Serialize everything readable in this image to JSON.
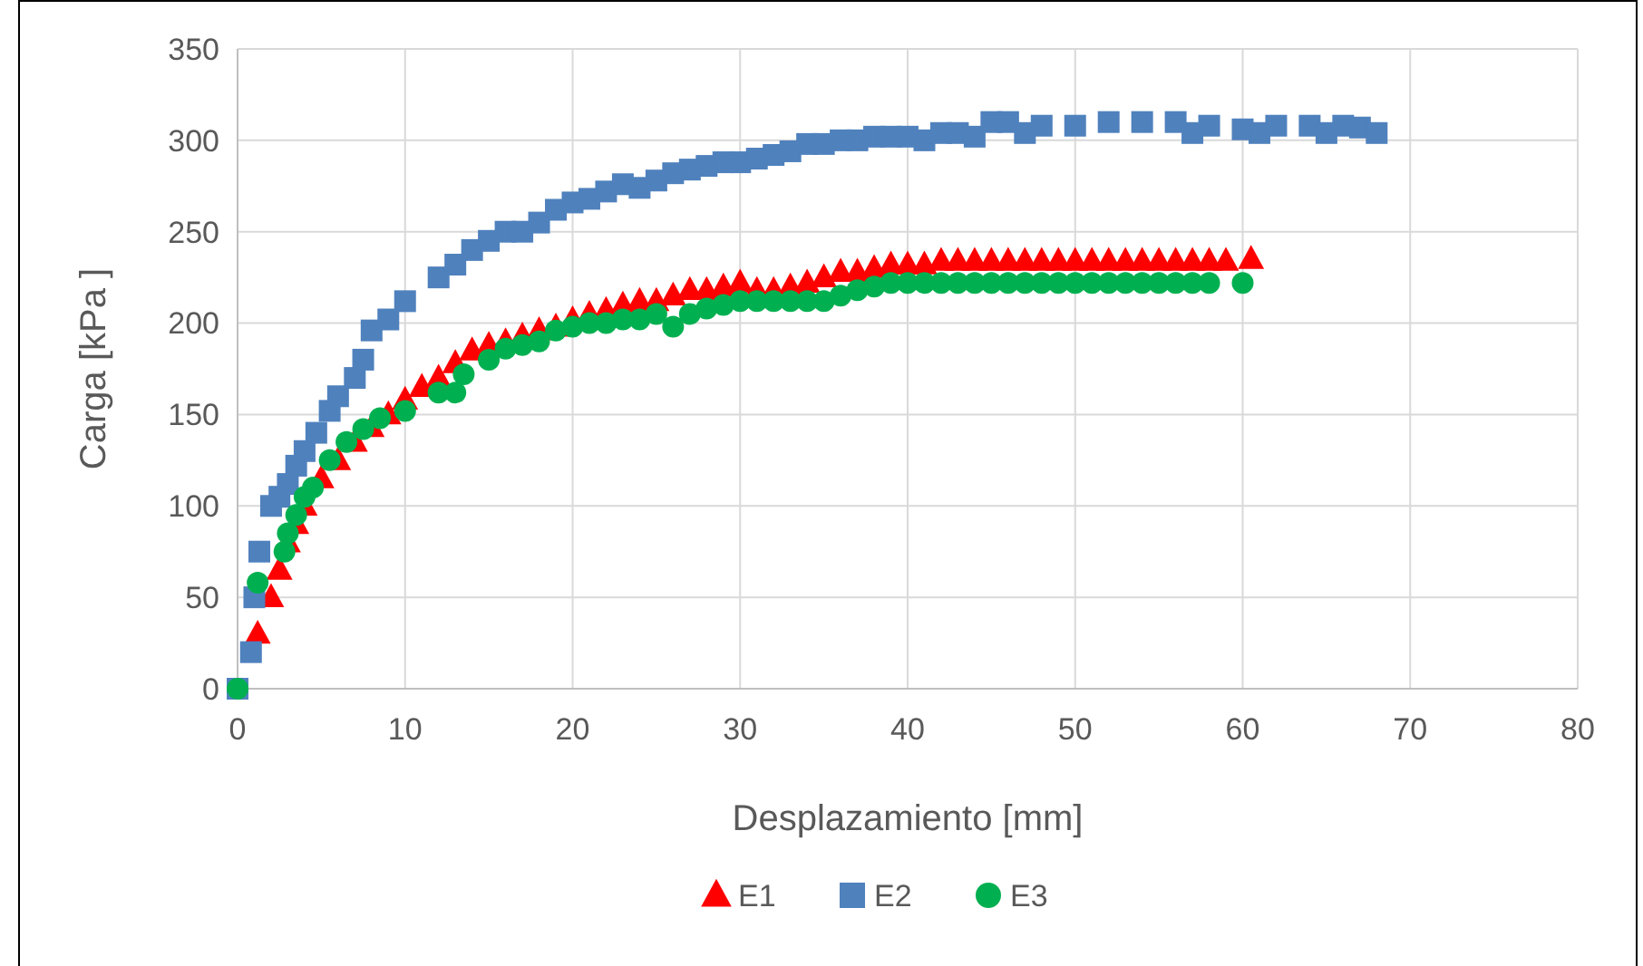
{
  "chart_data": {
    "type": "scatter",
    "xlabel": "Desplazamiento [mm]",
    "ylabel": "Carga [kPa ]",
    "xlim": [
      0,
      80
    ],
    "xticks": [
      0,
      10,
      20,
      30,
      40,
      50,
      60,
      70,
      80
    ],
    "ylim": [
      0,
      350
    ],
    "yticks": [
      0,
      50,
      100,
      150,
      200,
      250,
      300,
      350
    ],
    "grid": true,
    "legend": "bottom",
    "series": [
      {
        "name": "E1",
        "color": "#ff0000",
        "marker": "triangle",
        "x": [
          1.2,
          2,
          2.5,
          3,
          3.5,
          4,
          5,
          6,
          7,
          8,
          9,
          10,
          11,
          12,
          13,
          14,
          15,
          16,
          17,
          18,
          19,
          20,
          21,
          22,
          23,
          24,
          25,
          26,
          27,
          28,
          29,
          30,
          31,
          32,
          33,
          34,
          35,
          36,
          37,
          38,
          39,
          40,
          41,
          42,
          43,
          44,
          45,
          46,
          47,
          48,
          49,
          50,
          51,
          52,
          53,
          54,
          55,
          56,
          57,
          58,
          59,
          60.5
        ],
        "values": [
          30,
          50,
          65,
          80,
          90,
          100,
          115,
          125,
          135,
          143,
          150,
          158,
          165,
          170,
          178,
          185,
          188,
          190,
          193,
          196,
          198,
          202,
          205,
          207,
          210,
          212,
          212,
          215,
          218,
          218,
          220,
          222,
          218,
          218,
          220,
          222,
          225,
          228,
          228,
          230,
          232,
          232,
          232,
          234,
          234,
          234,
          234,
          234,
          234,
          234,
          234,
          234,
          234,
          234,
          234,
          234,
          234,
          234,
          234,
          234,
          234,
          235
        ]
      },
      {
        "name": "E2",
        "color": "#4f81bd",
        "marker": "square",
        "x": [
          0,
          0.8,
          1,
          1.3,
          2,
          2.5,
          3,
          3.5,
          4,
          4.7,
          5.5,
          6,
          7,
          7.5,
          8,
          9,
          10,
          12,
          13,
          14,
          15,
          16,
          17,
          18,
          19,
          20,
          21,
          22,
          23,
          24,
          25,
          26,
          27,
          28,
          29,
          30,
          31,
          32,
          33,
          34,
          35,
          36,
          37,
          38,
          39,
          40,
          41,
          42,
          43,
          44,
          45,
          46,
          47,
          48,
          50,
          52,
          54,
          56,
          57,
          58,
          60,
          61,
          62,
          64,
          65,
          66,
          67,
          68
        ],
        "values": [
          0,
          20,
          50,
          75,
          100,
          105,
          112,
          122,
          130,
          140,
          152,
          160,
          170,
          180,
          196,
          202,
          212,
          225,
          232,
          240,
          245,
          250,
          250,
          255,
          262,
          266,
          268,
          272,
          276,
          274,
          278,
          282,
          284,
          286,
          288,
          288,
          290,
          292,
          294,
          298,
          298,
          300,
          300,
          302,
          302,
          302,
          300,
          304,
          304,
          302,
          310,
          310,
          304,
          308,
          308,
          310,
          310,
          310,
          304,
          308,
          306,
          304,
          308,
          308,
          304,
          308,
          307,
          304
        ]
      },
      {
        "name": "E3",
        "color": "#00b050",
        "marker": "circle",
        "x": [
          0,
          1.2,
          2.8,
          3,
          3.5,
          4,
          4.5,
          5.5,
          6.5,
          7.5,
          8.5,
          10,
          12,
          13,
          13.5,
          15,
          16,
          17,
          18,
          19,
          20,
          21,
          22,
          23,
          24,
          25,
          26,
          27,
          28,
          29,
          30,
          31,
          32,
          33,
          34,
          35,
          36,
          37,
          38,
          39,
          40,
          41,
          42,
          43,
          44,
          45,
          46,
          47,
          48,
          49,
          50,
          51,
          52,
          53,
          54,
          55,
          56,
          57,
          58,
          60
        ],
        "values": [
          0,
          58,
          75,
          85,
          95,
          105,
          110,
          125,
          135,
          142,
          148,
          152,
          162,
          162,
          172,
          180,
          186,
          188,
          190,
          196,
          198,
          200,
          200,
          202,
          202,
          205,
          198,
          205,
          208,
          210,
          212,
          212,
          212,
          212,
          212,
          212,
          215,
          218,
          220,
          222,
          222,
          222,
          222,
          222,
          222,
          222,
          222,
          222,
          222,
          222,
          222,
          222,
          222,
          222,
          222,
          222,
          222,
          222,
          222,
          222
        ]
      }
    ]
  }
}
